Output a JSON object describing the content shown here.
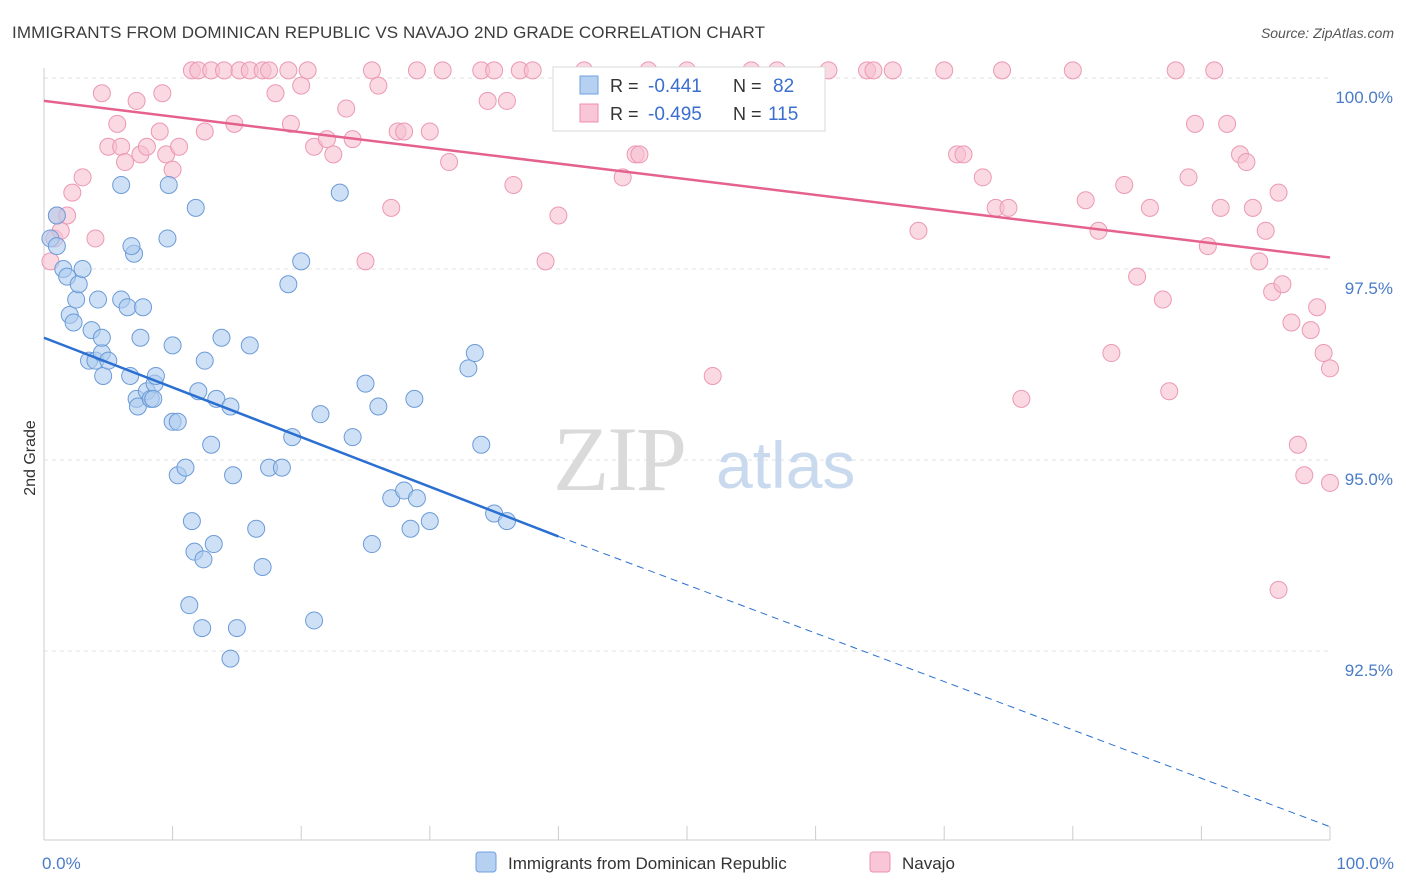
{
  "header": {
    "title": "IMMIGRANTS FROM DOMINICAN REPUBLIC VS NAVAJO 2ND GRADE CORRELATION CHART",
    "source": "Source: ZipAtlas.com"
  },
  "watermark": {
    "zip": "ZIP",
    "atlas": "atlas"
  },
  "stats_legend": {
    "rows": [
      {
        "r_label": "R =",
        "r_value": "-0.441",
        "n_label": "N =",
        "n_value": "82",
        "color": "#6fa0e0"
      },
      {
        "r_label": "R =",
        "r_value": "-0.495",
        "n_label": "N =",
        "n_value": "115",
        "color": "#ef8fb0"
      }
    ]
  },
  "bottom_legend": {
    "items": [
      {
        "label": "Immigrants from Dominican Republic",
        "color": "#6fa0e0"
      },
      {
        "label": "Navajo",
        "color": "#ef8fb0"
      }
    ]
  },
  "colors": {
    "blue_fill": "#aecbef",
    "blue_stroke": "#6c9bd8",
    "blue_line": "#2a6fd1",
    "pink_fill": "#f6bfd0",
    "pink_stroke": "#ec98b4",
    "pink_line": "#e4628d",
    "grid": "#e2e2e2",
    "axis": "#cccccc",
    "tick_text": "#4a7cc7"
  },
  "chart_data": {
    "type": "scatter",
    "title": "IMMIGRANTS FROM DOMINICAN REPUBLIC VS NAVAJO 2ND GRADE CORRELATION CHART",
    "xlabel": "",
    "ylabel": "2nd Grade",
    "xlim": [
      0,
      100
    ],
    "ylim": [
      90.3,
      100.5
    ],
    "x_tick_labels": [
      "0.0%",
      "100.0%"
    ],
    "y_ticks": [
      92.5,
      95.0,
      97.5,
      100.0
    ],
    "y_tick_labels": [
      "92.5%",
      "95.0%",
      "97.5%",
      "100.0%"
    ],
    "grid": true,
    "legend_position": "top-center",
    "series": [
      {
        "name": "Immigrants from Dominican Republic",
        "r": -0.441,
        "n": 82,
        "trend": {
          "x0": 0,
          "y0": 96.6,
          "x1": 40,
          "y1": 94.0,
          "x_dash_end": 100,
          "y_dash_end": 90.2
        },
        "points": [
          [
            0.5,
            97.9
          ],
          [
            1,
            98.2
          ],
          [
            1,
            97.8
          ],
          [
            1.5,
            97.5
          ],
          [
            1.8,
            97.4
          ],
          [
            2,
            96.9
          ],
          [
            2.3,
            96.8
          ],
          [
            2.5,
            97.1
          ],
          [
            3.5,
            96.3
          ],
          [
            3.7,
            96.7
          ],
          [
            4,
            96.3
          ],
          [
            4.2,
            97.1
          ],
          [
            4.5,
            96.4
          ],
          [
            4.5,
            96.6
          ],
          [
            4.6,
            96.1
          ],
          [
            5,
            96.3
          ],
          [
            6,
            97.1
          ],
          [
            6.5,
            97.0
          ],
          [
            7,
            97.7
          ],
          [
            7.7,
            97.0
          ],
          [
            7.5,
            96.6
          ],
          [
            6.7,
            96.1
          ],
          [
            6.8,
            97.8
          ],
          [
            7.2,
            95.8
          ],
          [
            7.3,
            95.7
          ],
          [
            8,
            95.9
          ],
          [
            8.3,
            95.8
          ],
          [
            8.6,
            96.0
          ],
          [
            8.5,
            95.8
          ],
          [
            8.7,
            96.1
          ],
          [
            9.6,
            97.9
          ],
          [
            9.7,
            98.6
          ],
          [
            10,
            95.5
          ],
          [
            10,
            96.5
          ],
          [
            10.4,
            95.5
          ],
          [
            10.4,
            94.8
          ],
          [
            11,
            94.9
          ],
          [
            11.3,
            93.1
          ],
          [
            11.5,
            94.2
          ],
          [
            11.7,
            93.8
          ],
          [
            12,
            95.9
          ],
          [
            11.8,
            98.3
          ],
          [
            12.3,
            92.8
          ],
          [
            12.4,
            93.7
          ],
          [
            12.5,
            96.3
          ],
          [
            13,
            95.2
          ],
          [
            13.2,
            93.9
          ],
          [
            13.4,
            95.8
          ],
          [
            13.8,
            96.6
          ],
          [
            14.5,
            95.7
          ],
          [
            14.7,
            94.8
          ],
          [
            15,
            92.8
          ],
          [
            14.5,
            92.4
          ],
          [
            16,
            96.5
          ],
          [
            16.5,
            94.1
          ],
          [
            17,
            93.6
          ],
          [
            17.5,
            94.9
          ],
          [
            18.5,
            94.9
          ],
          [
            19,
            97.3
          ],
          [
            19.3,
            95.3
          ],
          [
            20,
            97.6
          ],
          [
            21,
            92.9
          ],
          [
            21.5,
            95.6
          ],
          [
            23,
            98.5
          ],
          [
            24,
            95.3
          ],
          [
            25,
            96.0
          ],
          [
            25.5,
            93.9
          ],
          [
            26,
            95.7
          ],
          [
            27,
            94.5
          ],
          [
            28,
            94.6
          ],
          [
            28.5,
            94.1
          ],
          [
            28.8,
            95.8
          ],
          [
            29,
            94.5
          ],
          [
            30,
            94.2
          ],
          [
            33,
            96.2
          ],
          [
            33.5,
            96.4
          ],
          [
            34,
            95.2
          ],
          [
            35,
            94.3
          ],
          [
            36,
            94.2
          ],
          [
            6,
            98.6
          ],
          [
            2.7,
            97.3
          ],
          [
            3,
            97.5
          ]
        ]
      },
      {
        "name": "Navajo",
        "r": -0.495,
        "n": 115,
        "trend": {
          "x0": 0,
          "y0": 99.7,
          "x1": 100,
          "y1": 97.65
        },
        "points": [
          [
            0.5,
            97.6
          ],
          [
            0.8,
            97.9
          ],
          [
            1,
            98.2
          ],
          [
            1.3,
            98.0
          ],
          [
            1.8,
            98.2
          ],
          [
            2.2,
            98.5
          ],
          [
            3,
            98.7
          ],
          [
            4,
            97.9
          ],
          [
            4.5,
            99.8
          ],
          [
            5,
            99.1
          ],
          [
            5.7,
            99.4
          ],
          [
            6,
            99.1
          ],
          [
            6.3,
            98.9
          ],
          [
            7.2,
            99.7
          ],
          [
            7.5,
            99.0
          ],
          [
            8,
            99.1
          ],
          [
            9,
            99.3
          ],
          [
            9.2,
            99.8
          ],
          [
            9.5,
            99.0
          ],
          [
            10,
            98.8
          ],
          [
            10.5,
            99.1
          ],
          [
            11.5,
            100.1
          ],
          [
            12,
            100.1
          ],
          [
            12.5,
            99.3
          ],
          [
            13,
            100.1
          ],
          [
            14,
            100.1
          ],
          [
            14.8,
            99.4
          ],
          [
            15.2,
            100.1
          ],
          [
            16,
            100.1
          ],
          [
            17,
            100.1
          ],
          [
            17.5,
            100.1
          ],
          [
            18,
            99.8
          ],
          [
            19,
            100.1
          ],
          [
            19.2,
            99.4
          ],
          [
            20,
            99.9
          ],
          [
            20.5,
            100.1
          ],
          [
            21,
            99.1
          ],
          [
            22,
            99.2
          ],
          [
            22.5,
            99.0
          ],
          [
            23.5,
            99.6
          ],
          [
            24,
            99.2
          ],
          [
            25,
            97.6
          ],
          [
            25.5,
            100.1
          ],
          [
            26,
            99.9
          ],
          [
            27,
            98.3
          ],
          [
            27.5,
            99.3
          ],
          [
            28,
            99.3
          ],
          [
            29,
            100.1
          ],
          [
            30,
            99.3
          ],
          [
            31,
            100.1
          ],
          [
            31.5,
            98.9
          ],
          [
            34,
            100.1
          ],
          [
            34.5,
            99.7
          ],
          [
            35,
            100.1
          ],
          [
            36,
            99.7
          ],
          [
            36.5,
            98.6
          ],
          [
            37,
            100.1
          ],
          [
            38,
            100.1
          ],
          [
            39,
            97.6
          ],
          [
            40,
            98.2
          ],
          [
            42,
            100.1
          ],
          [
            45,
            98.7
          ],
          [
            46,
            99.0
          ],
          [
            46.3,
            99.0
          ],
          [
            47,
            100.1
          ],
          [
            50,
            100.1
          ],
          [
            52,
            96.1
          ],
          [
            55,
            100.1
          ],
          [
            57,
            100.1
          ],
          [
            61,
            100.1
          ],
          [
            64,
            100.1
          ],
          [
            64.5,
            100.1
          ],
          [
            66,
            100.1
          ],
          [
            68,
            98.0
          ],
          [
            70,
            100.1
          ],
          [
            71,
            99.0
          ],
          [
            71.5,
            99.0
          ],
          [
            73,
            98.7
          ],
          [
            74,
            98.3
          ],
          [
            74.5,
            100.1
          ],
          [
            75,
            98.3
          ],
          [
            76,
            95.8
          ],
          [
            80,
            100.1
          ],
          [
            81,
            98.4
          ],
          [
            82,
            98.0
          ],
          [
            83,
            96.4
          ],
          [
            84,
            98.6
          ],
          [
            85,
            97.4
          ],
          [
            86,
            98.3
          ],
          [
            87,
            97.1
          ],
          [
            88,
            100.1
          ],
          [
            87.5,
            95.9
          ],
          [
            89,
            98.7
          ],
          [
            89.5,
            99.4
          ],
          [
            90.5,
            97.8
          ],
          [
            91,
            100.1
          ],
          [
            91.5,
            98.3
          ],
          [
            92,
            99.4
          ],
          [
            93,
            99.0
          ],
          [
            93.5,
            98.9
          ],
          [
            94,
            98.3
          ],
          [
            94.5,
            97.6
          ],
          [
            95,
            98.0
          ],
          [
            95.5,
            97.2
          ],
          [
            96,
            93.3
          ],
          [
            96,
            98.5
          ],
          [
            96.3,
            97.3
          ],
          [
            97,
            96.8
          ],
          [
            97.5,
            95.2
          ],
          [
            98,
            94.8
          ],
          [
            98.5,
            96.7
          ],
          [
            99,
            97.0
          ],
          [
            99.5,
            96.4
          ],
          [
            100,
            96.2
          ],
          [
            100,
            94.7
          ]
        ]
      }
    ]
  }
}
